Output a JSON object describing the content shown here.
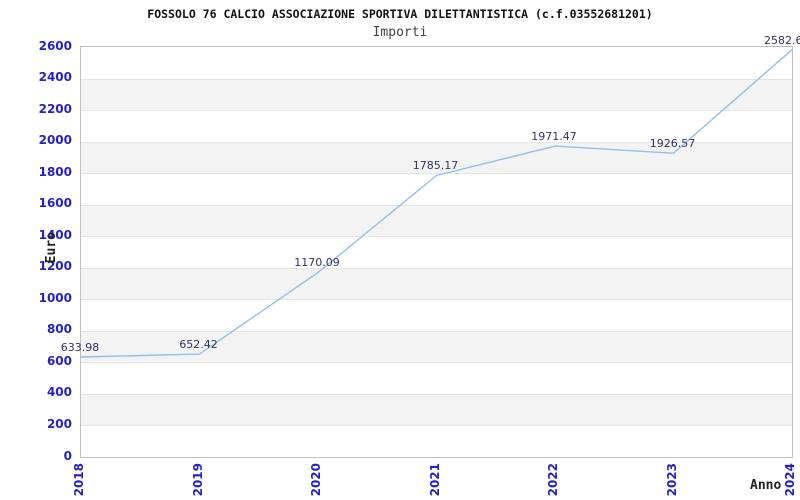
{
  "header": {
    "title": "FOSSOLO 76 CALCIO ASSOCIAZIONE SPORTIVA DILETTANTISTICA (c.f.03552681201)",
    "subtitle": "Importi"
  },
  "chart_data": {
    "type": "line",
    "title": "FOSSOLO 76 CALCIO ASSOCIAZIONE SPORTIVA DILETTANTISTICA (c.f.03552681201)",
    "subtitle": "Importi",
    "xlabel": "Anno",
    "ylabel": "Euro",
    "categories": [
      "2018",
      "2019",
      "2020",
      "2021",
      "2022",
      "2023",
      "2024"
    ],
    "series": [
      {
        "name": "Importi",
        "values": [
          633.98,
          652.42,
          1170.09,
          1785.17,
          1971.47,
          1926.57,
          2582.6
        ]
      }
    ],
    "point_labels": [
      "633.98",
      "652.42",
      "1170.09",
      "1785.17",
      "1971.47",
      "1926.57",
      "2582.6"
    ],
    "ylim": [
      0,
      2600
    ],
    "ytick_step": 200,
    "yticks": [
      0,
      200,
      400,
      600,
      800,
      1000,
      1200,
      1400,
      1600,
      1800,
      2000,
      2200,
      2400,
      2600
    ],
    "grid": "horizontal-alternating-bands",
    "legend_position": "none",
    "colors": {
      "line": "#94bfea",
      "tick_label": "#2222cc",
      "point_label": "#333369",
      "band_gray": "#f3f3f3",
      "band_boundary": "#e4e4e4",
      "plot_border": "#c0c0c0",
      "title": "#111111",
      "subtitle": "#444444",
      "axis_title": "#222222",
      "background": "#ffffff"
    }
  }
}
